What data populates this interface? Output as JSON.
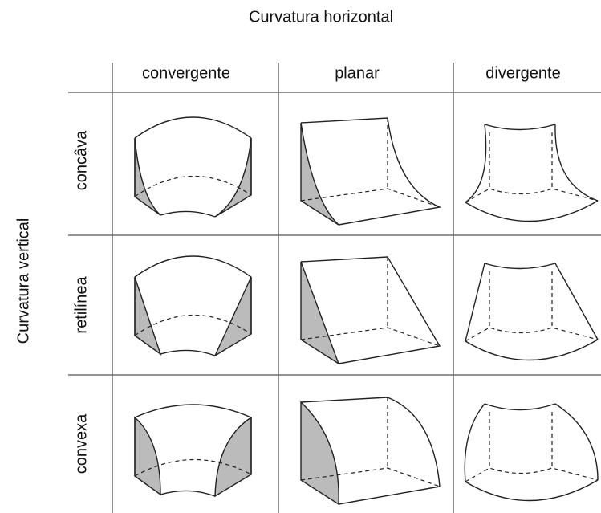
{
  "title": "Curvatura horizontal",
  "axis_label": "Curvatura vertical",
  "columns": [
    "convergente",
    "planar",
    "divergente"
  ],
  "rows": [
    "concâva",
    "retilínea",
    "convexa"
  ]
}
